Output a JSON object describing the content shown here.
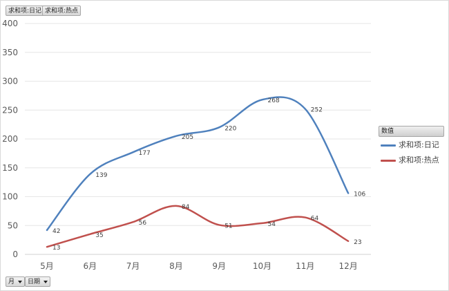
{
  "top_field_buttons": [
    {
      "label": "求和项:日记"
    },
    {
      "label": "求和项:热点"
    }
  ],
  "bottom_field_buttons": [
    {
      "label": "月"
    },
    {
      "label": "日期"
    }
  ],
  "legend": {
    "title": "数值",
    "items": [
      {
        "label": "求和项:日记",
        "color": "#4f81bd"
      },
      {
        "label": "求和项:热点",
        "color": "#c0504d"
      }
    ]
  },
  "chart_data": {
    "type": "line",
    "smooth": true,
    "categories": [
      "5月",
      "6月",
      "7月",
      "8月",
      "9月",
      "10月",
      "11月",
      "12月"
    ],
    "series": [
      {
        "name": "求和项:日记",
        "color": "#4f81bd",
        "values": [
          42,
          139,
          177,
          205,
          220,
          268,
          252,
          106
        ]
      },
      {
        "name": "求和项:热点",
        "color": "#c0504d",
        "values": [
          13,
          35,
          56,
          84,
          51,
          54,
          64,
          23
        ]
      }
    ],
    "ylim": [
      0,
      400
    ],
    "yticks": [
      0,
      50,
      100,
      150,
      200,
      250,
      300,
      350,
      400
    ],
    "grid": true,
    "legend_position": "right",
    "title": "",
    "xlabel": "",
    "ylabel": ""
  }
}
